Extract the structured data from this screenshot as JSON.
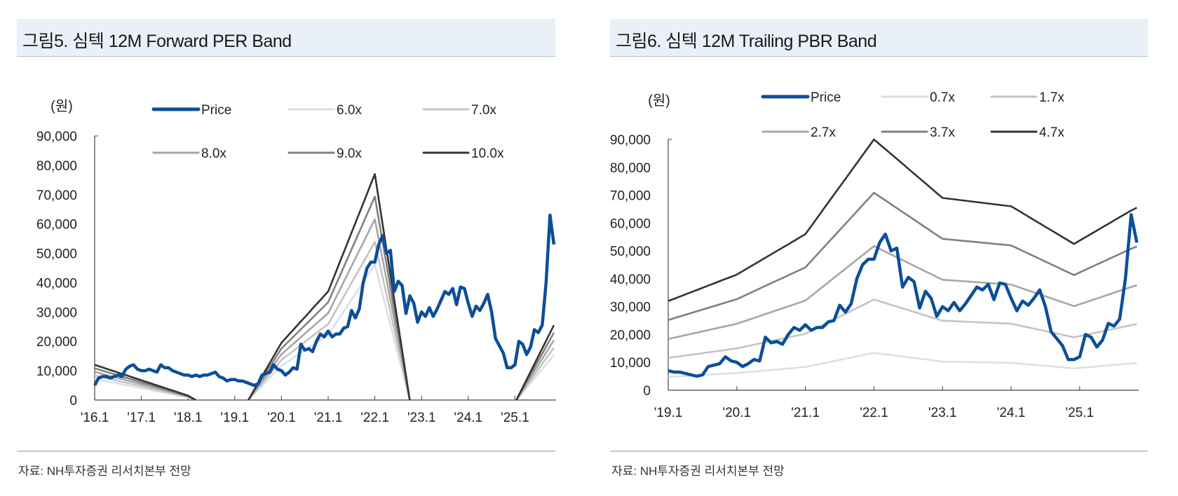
{
  "panels": [
    {
      "title": "그림5. 심텍  12M Forward PER Band",
      "source": "자료: NH투자증권 리서치본부 전망"
    },
    {
      "title": "그림6. 심텍  12M Trailing PBR Band",
      "source": "자료: NH투자증권 리서치본부 전망"
    }
  ],
  "chart_data": [
    {
      "type": "line",
      "title": "그림5. 심텍 12M Forward PER Band",
      "ylabel": "(원)",
      "ylim": [
        0,
        90000
      ],
      "yticks": [
        "0",
        "10,000",
        "20,000",
        "30,000",
        "40,000",
        "50,000",
        "60,000",
        "70,000",
        "80,000",
        "90,000"
      ],
      "xticks": [
        "'16.1",
        "'17.1",
        "'18.1",
        "'19.1",
        "'20.1",
        "'21.1",
        "'22.1",
        "'23.1",
        "'24.1",
        "'25.1"
      ],
      "x_start": "2016.1",
      "x_end": "2025.11",
      "legend": [
        "Price",
        "6.0x",
        "7.0x",
        "8.0x",
        "9.0x",
        "10.0x"
      ],
      "legend_placement": "top",
      "colors": {
        "Price": "#0b4f98",
        "6.0x": "#d8e0ea",
        "7.0x": "#c4c4c4",
        "8.0x": "#a6a6a6",
        "9.0x": "#808080",
        "10.0x": "#333333"
      },
      "price": [
        5000,
        7500,
        8000,
        8000,
        7500,
        8000,
        8500,
        8000,
        10500,
        11500,
        12000,
        10500,
        10000,
        10000,
        10500,
        10000,
        9500,
        12000,
        11000,
        11000,
        10000,
        9500,
        9000,
        8500,
        8500,
        8000,
        8500,
        8000,
        8500,
        8500,
        9000,
        9500,
        8000,
        7500,
        6500,
        7000,
        7000,
        6500,
        6500,
        6000,
        5500,
        5000,
        5500,
        8500,
        9000,
        9500,
        12000,
        10500,
        10000,
        8500,
        9500,
        11000,
        10500,
        19000,
        17000,
        17500,
        16500,
        20000,
        22500,
        21500,
        23500,
        21500,
        22500,
        22500,
        24500,
        25000,
        30500,
        28000,
        31000,
        40000,
        45000,
        47000,
        47000,
        53000,
        56000,
        50000,
        51000,
        37000,
        40500,
        39000,
        29500,
        35500,
        33000,
        26500,
        30000,
        28500,
        31500,
        28500,
        31000,
        34000,
        37000,
        36000,
        38000,
        32500,
        38500,
        38000,
        33000,
        28500,
        32000,
        30500,
        33000,
        36000,
        30000,
        21000,
        18500,
        16000,
        11000,
        11000,
        12000,
        20000,
        19000,
        15500,
        18000,
        24000,
        23000,
        25500,
        40000,
        63000,
        53000
      ],
      "multiples": [
        6,
        7,
        8,
        9,
        10
      ],
      "eps_anchors": [
        [
          0,
          1200
        ],
        [
          24,
          150
        ],
        [
          36,
          -800
        ],
        [
          48,
          1950
        ],
        [
          60,
          3700
        ],
        [
          72,
          7700
        ],
        [
          84,
          -2600
        ],
        [
          96,
          -2500
        ],
        [
          108,
          -100
        ],
        [
          118,
          2550
        ]
      ]
    },
    {
      "type": "line",
      "title": "그림6. 심텍 12M Trailing PBR Band",
      "ylabel": "(원)",
      "ylim": [
        0,
        90000
      ],
      "yticks": [
        "0",
        "10,000",
        "20,000",
        "30,000",
        "40,000",
        "50,000",
        "60,000",
        "70,000",
        "80,000",
        "90,000"
      ],
      "xticks": [
        "'19.1",
        "'20.1",
        "'21.1",
        "'22.1",
        "'23.1",
        "'24.1",
        "'25.1"
      ],
      "x_start": "2019.1",
      "x_end": "2025.11",
      "legend": [
        "Price",
        "0.7x",
        "1.7x",
        "2.7x",
        "3.7x",
        "4.7x"
      ],
      "legend_placement": "top",
      "colors": {
        "Price": "#0b4f98",
        "0.7x": "#d8e0ea",
        "1.7x": "#c4c4c4",
        "2.7x": "#a6a6a6",
        "3.7x": "#808080",
        "4.7x": "#333333"
      },
      "price": [
        7000,
        6500,
        6500,
        6000,
        5500,
        5000,
        5500,
        8500,
        9000,
        9500,
        12000,
        10500,
        10000,
        8500,
        9500,
        11000,
        10500,
        19000,
        17000,
        17500,
        16500,
        20000,
        22500,
        21500,
        23500,
        21500,
        22500,
        22500,
        24500,
        25000,
        30500,
        28000,
        31000,
        40000,
        45000,
        47000,
        47000,
        53000,
        56000,
        50000,
        51000,
        37000,
        40500,
        39000,
        29500,
        35500,
        33000,
        26500,
        30000,
        28500,
        31500,
        28500,
        31000,
        34000,
        37000,
        36000,
        38000,
        32500,
        38500,
        38000,
        33000,
        28500,
        32000,
        30500,
        33000,
        36000,
        30000,
        21000,
        18500,
        16000,
        11000,
        11000,
        12000,
        20000,
        19000,
        15500,
        18000,
        24000,
        23000,
        25500,
        40000,
        63000,
        53000
      ],
      "multiples": [
        0.7,
        1.7,
        2.7,
        3.7,
        4.7
      ],
      "bps_anchors": [
        [
          0,
          6809
        ],
        [
          12,
          8830
        ],
        [
          24,
          11915
        ],
        [
          36,
          19149
        ],
        [
          48,
          14681
        ],
        [
          60,
          14043
        ],
        [
          71,
          11170
        ],
        [
          81,
          13720
        ],
        [
          82,
          13936
        ]
      ]
    }
  ]
}
